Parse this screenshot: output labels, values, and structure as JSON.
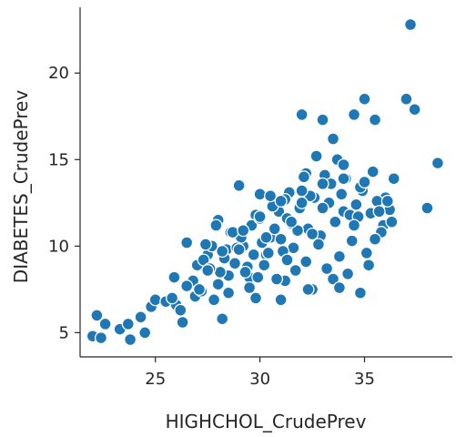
{
  "chart_data": {
    "type": "scatter",
    "title": "",
    "xlabel": "HIGHCHOL_CrudePrev",
    "ylabel": "DIABETES_CrudePrev",
    "xlim": [
      21.4,
      39.2
    ],
    "ylim": [
      3.6,
      23.8
    ],
    "xticks": [
      25,
      30,
      35
    ],
    "yticks": [
      5,
      10,
      15,
      20
    ],
    "xtick_labels": [
      "25",
      "30",
      "35"
    ],
    "ytick_labels": [
      "5",
      "10",
      "15",
      "20"
    ],
    "grid": false,
    "legend": "none",
    "point_color": "#1f77b4",
    "series": [
      {
        "x": [
          22.0,
          22.2,
          22.4,
          22.6,
          23.3,
          23.7,
          23.8,
          24.3,
          24.5,
          24.8,
          25.0,
          25.5,
          25.9,
          26.0,
          26.2,
          26.3,
          26.5,
          26.9,
          27.0,
          27.2,
          27.5,
          27.8,
          28.0,
          28.2,
          28.5,
          29.0,
          29.2,
          29.5,
          29.8,
          30.0,
          30.3,
          30.5,
          30.9,
          31.2,
          31.5,
          32.0,
          32.2,
          32.5,
          33.0,
          33.5,
          34.0,
          34.5,
          35.0,
          35.5,
          36.0,
          36.4,
          37.0,
          37.2,
          37.4,
          38.0,
          38.5,
          26.8,
          27.3,
          27.7,
          28.1,
          28.4,
          28.8,
          29.1,
          29.4,
          29.7,
          30.1,
          30.4,
          30.7,
          31.0,
          31.3,
          31.6,
          31.9,
          32.3,
          32.6,
          32.9,
          33.3,
          33.6,
          33.9,
          34.3,
          34.6,
          34.9,
          35.3,
          35.6,
          35.9,
          36.2,
          27.1,
          27.6,
          28.3,
          28.6,
          29.3,
          29.6,
          30.2,
          30.6,
          31.1,
          31.4,
          31.8,
          32.1,
          32.4,
          32.8,
          33.1,
          33.4,
          33.8,
          34.1,
          34.4,
          34.8,
          35.1,
          35.4,
          35.8,
          36.1,
          27.4,
          28.0,
          28.9,
          29.5,
          30.0,
          30.8,
          31.2,
          31.7,
          32.2,
          32.7,
          33.2,
          33.7,
          34.2,
          34.7,
          35.2,
          35.7,
          27.9,
          28.7,
          29.9,
          30.5,
          31.5,
          32.5,
          33.5,
          34.5,
          35.5,
          29.0,
          30.3,
          31.3,
          32.0,
          33.0,
          34.0,
          35.0,
          36.3,
          28.5,
          29.8,
          31.0,
          32.3,
          33.8,
          34.8,
          30.0,
          31.0,
          32.0,
          33.0,
          34.0,
          29.2,
          28.2,
          27.5,
          26.5,
          25.8
        ],
        "y": [
          4.8,
          6.0,
          4.7,
          5.5,
          5.2,
          5.5,
          4.6,
          5.9,
          5.0,
          6.5,
          6.9,
          6.8,
          8.2,
          6.6,
          6.3,
          5.6,
          10.2,
          7.1,
          8.9,
          7.4,
          9.5,
          6.9,
          11.5,
          5.8,
          8.3,
          13.5,
          10.0,
          8.2,
          11.8,
          13.0,
          9.5,
          10.5,
          12.0,
          8.0,
          11.3,
          17.6,
          14.2,
          7.5,
          17.3,
          16.2,
          12.0,
          17.6,
          18.5,
          17.3,
          12.8,
          13.9,
          18.5,
          22.8,
          17.9,
          12.2,
          14.8,
          8.0,
          9.2,
          10.0,
          8.5,
          9.8,
          9.0,
          10.5,
          8.8,
          9.5,
          10.2,
          9.6,
          11.0,
          10.4,
          11.6,
          9.9,
          12.2,
          11.0,
          12.8,
          10.6,
          12.5,
          11.4,
          13.0,
          11.8,
          12.4,
          13.2,
          11.9,
          12.6,
          11.2,
          12.1,
          7.5,
          8.7,
          9.3,
          10.8,
          8.5,
          11.2,
          8.9,
          12.3,
          9.7,
          13.1,
          10.9,
          14.0,
          12.9,
          10.1,
          14.1,
          13.6,
          9.4,
          13.9,
          10.3,
          13.4,
          9.6,
          14.3,
          10.8,
          12.6,
          10.1,
          7.8,
          9.9,
          7.6,
          11.6,
          8.1,
          12.7,
          8.6,
          9.1,
          15.2,
          8.7,
          15.0,
          8.4,
          11.7,
          8.9,
          12.0,
          11.2,
          10.8,
          8.2,
          12.9,
          11.4,
          10.7,
          8.1,
          11.2,
          10.4,
          9.8,
          10.5,
          9.2,
          12.5,
          13.6,
          14.7,
          13.7,
          11.4,
          7.3,
          7.0,
          6.9,
          7.5,
          7.6,
          7.3,
          11.7,
          12.6,
          13.2,
          12.2,
          13.9,
          10.9,
          9.7,
          8.6,
          7.7,
          7.0
        ]
      }
    ]
  }
}
